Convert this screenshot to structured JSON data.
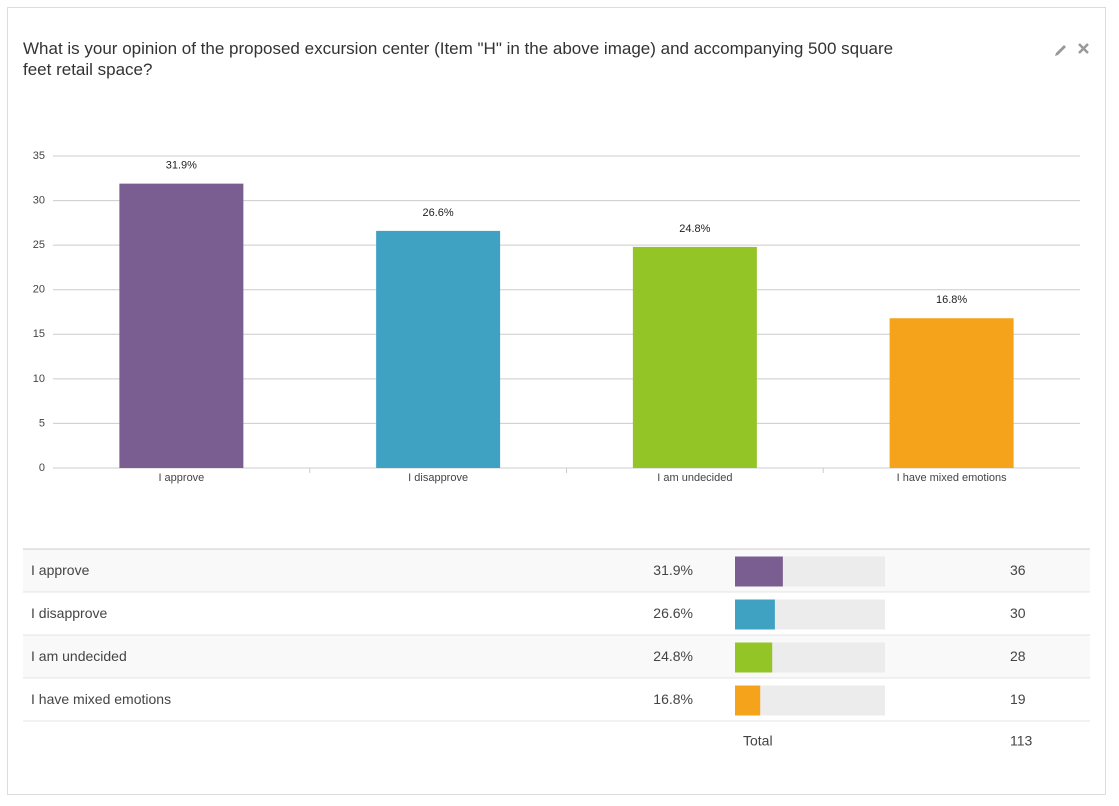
{
  "chart_data": {
    "type": "bar",
    "title": "What is your opinion of the proposed excursion center (Item \"H\" in the above image) and accompanying 500 square feet retail space?",
    "categories": [
      "I approve",
      "I disapprove",
      "I am undecided",
      "I have mixed emotions"
    ],
    "values": [
      31.9,
      26.6,
      24.8,
      16.8
    ],
    "value_labels": [
      "31.9%",
      "26.6%",
      "24.8%",
      "16.8%"
    ],
    "colors": [
      "#7b5e91",
      "#40a2c3",
      "#94c527",
      "#f4a31b"
    ],
    "ylim": [
      0,
      35
    ],
    "yticks": [
      0,
      5,
      10,
      15,
      20,
      25,
      30,
      35
    ],
    "grid": true
  },
  "table": {
    "rows": [
      {
        "label": "I approve",
        "percent": 31.9,
        "percent_label": "31.9%",
        "count": 36
      },
      {
        "label": "I disapprove",
        "percent": 26.6,
        "percent_label": "26.6%",
        "count": 30
      },
      {
        "label": "I am undecided",
        "percent": 24.8,
        "percent_label": "24.8%",
        "count": 28
      },
      {
        "label": "I have mixed emotions",
        "percent": 16.8,
        "percent_label": "16.8%",
        "count": 19
      }
    ],
    "total_label": "Total",
    "total": 113
  }
}
